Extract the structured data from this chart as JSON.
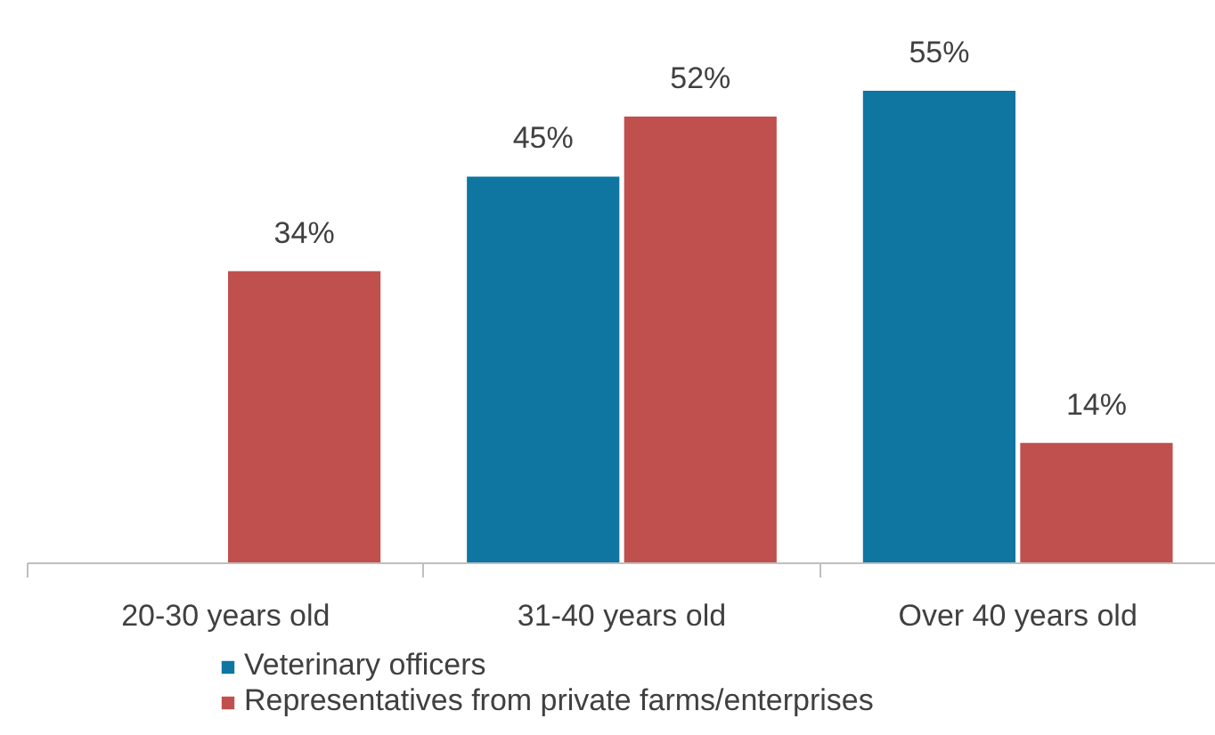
{
  "chart_data": {
    "type": "bar",
    "categories": [
      "20-30 years old",
      "31-40 years old",
      "Over 40 years old"
    ],
    "series": [
      {
        "name": "Veterinary officers",
        "color": "#0e76a0",
        "values": [
          null,
          45,
          55
        ],
        "value_labels": [
          null,
          "45%",
          "55%"
        ]
      },
      {
        "name": "Representatives from private farms/enterprises",
        "color": "#c0504d",
        "values": [
          34,
          52,
          14
        ],
        "value_labels": [
          "34%",
          "52%",
          "14%"
        ]
      }
    ],
    "legend": "bottom"
  }
}
